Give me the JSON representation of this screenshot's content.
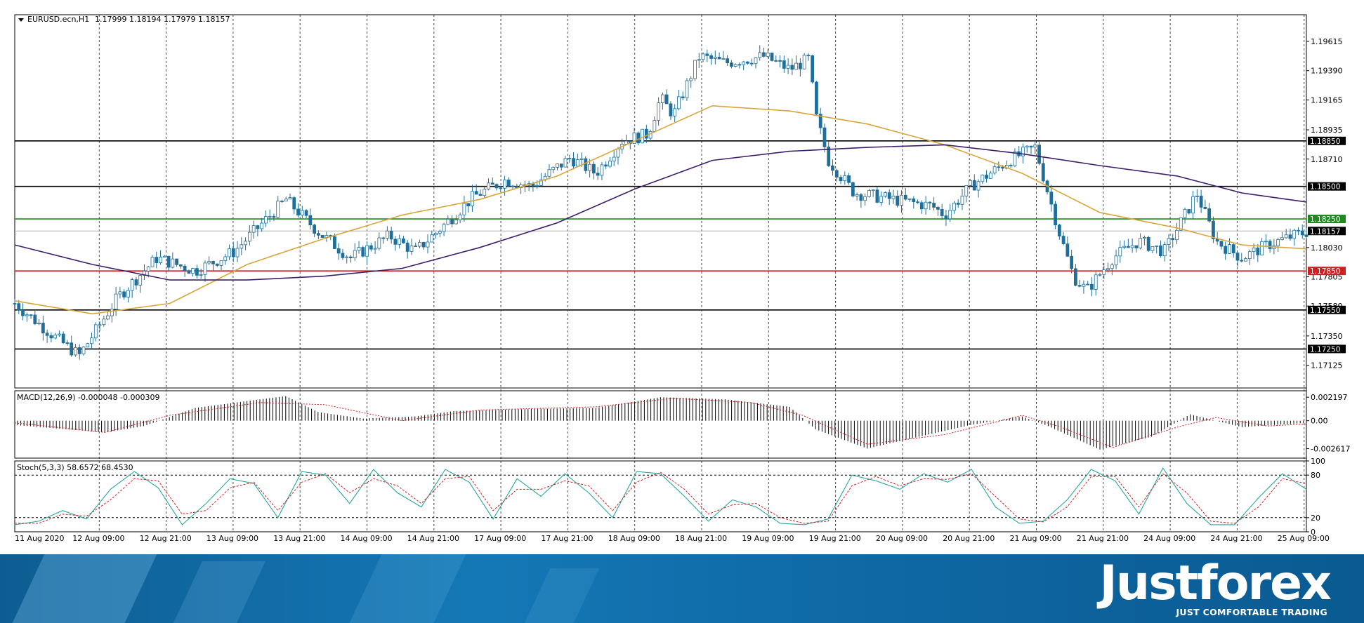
{
  "chart_data": [
    {
      "type": "candlestick",
      "title": "EURUSD.ecn,H1",
      "ohlc_header": "1.17999 1.18194 1.17979 1.18157",
      "ylim": [
        1.1695,
        1.1982
      ],
      "y_ticks": [
        "1.19615",
        "1.19390",
        "1.19165",
        "1.18935",
        "1.18710",
        "1.18030",
        "1.17805",
        "1.17580",
        "1.17350",
        "1.17125"
      ],
      "x_ticks": [
        "11 Aug 2020",
        "12 Aug 09:00",
        "12 Aug 21:00",
        "13 Aug 09:00",
        "13 Aug 21:00",
        "14 Aug 09:00",
        "14 Aug 21:00",
        "17 Aug 09:00",
        "17 Aug 21:00",
        "18 Aug 09:00",
        "18 Aug 21:00",
        "19 Aug 09:00",
        "19 Aug 21:00",
        "20 Aug 09:00",
        "20 Aug 21:00",
        "21 Aug 09:00",
        "21 Aug 21:00",
        "24 Aug 09:00",
        "24 Aug 21:00",
        "25 Aug 09:00"
      ],
      "current_price": "1.18157",
      "levels": [
        {
          "price": 1.1885,
          "label": "1.18850",
          "color": "#000000"
        },
        {
          "price": 1.185,
          "label": "1.18500",
          "color": "#000000"
        },
        {
          "price": 1.1825,
          "label": "1.18250",
          "color": "#1f8a1f"
        },
        {
          "price": 1.1785,
          "label": "1.17850",
          "color": "#d02020"
        },
        {
          "price": 1.1755,
          "label": "1.17550",
          "color": "#000000"
        },
        {
          "price": 1.1725,
          "label": "1.17250",
          "color": "#000000"
        }
      ],
      "series": [
        {
          "name": "ma_fast",
          "color": "#d9a53a",
          "points": [
            [
              0,
              1.1762
            ],
            [
              0.06,
              1.1752
            ],
            [
              0.12,
              1.176
            ],
            [
              0.18,
              1.179
            ],
            [
              0.24,
              1.181
            ],
            [
              0.3,
              1.1828
            ],
            [
              0.36,
              1.184
            ],
            [
              0.42,
              1.1858
            ],
            [
              0.48,
              1.1885
            ],
            [
              0.54,
              1.1912
            ],
            [
              0.6,
              1.1908
            ],
            [
              0.66,
              1.1898
            ],
            [
              0.72,
              1.1882
            ],
            [
              0.78,
              1.186
            ],
            [
              0.84,
              1.183
            ],
            [
              0.9,
              1.1818
            ],
            [
              0.95,
              1.1805
            ],
            [
              1.0,
              1.1802
            ]
          ]
        },
        {
          "name": "ma_slow",
          "color": "#3b1f6b",
          "points": [
            [
              0,
              1.1805
            ],
            [
              0.06,
              1.179
            ],
            [
              0.12,
              1.1778
            ],
            [
              0.18,
              1.1778
            ],
            [
              0.24,
              1.1781
            ],
            [
              0.3,
              1.1787
            ],
            [
              0.36,
              1.1803
            ],
            [
              0.42,
              1.1822
            ],
            [
              0.48,
              1.1848
            ],
            [
              0.54,
              1.187
            ],
            [
              0.6,
              1.1877
            ],
            [
              0.66,
              1.188
            ],
            [
              0.72,
              1.1882
            ],
            [
              0.78,
              1.1875
            ],
            [
              0.84,
              1.1866
            ],
            [
              0.9,
              1.1858
            ],
            [
              0.95,
              1.1845
            ],
            [
              1.0,
              1.1838
            ]
          ]
        }
      ],
      "price_path": [
        [
          0,
          1.176
        ],
        [
          0.03,
          1.1735
        ],
        [
          0.05,
          1.172
        ],
        [
          0.08,
          1.1765
        ],
        [
          0.11,
          1.1795
        ],
        [
          0.14,
          1.1785
        ],
        [
          0.17,
          1.18
        ],
        [
          0.19,
          1.182
        ],
        [
          0.21,
          1.184
        ],
        [
          0.235,
          1.1815
        ],
        [
          0.26,
          1.1795
        ],
        [
          0.29,
          1.1812
        ],
        [
          0.31,
          1.18
        ],
        [
          0.33,
          1.1818
        ],
        [
          0.355,
          1.1842
        ],
        [
          0.38,
          1.1855
        ],
        [
          0.4,
          1.185
        ],
        [
          0.43,
          1.1872
        ],
        [
          0.45,
          1.186
        ],
        [
          0.47,
          1.1885
        ],
        [
          0.49,
          1.189
        ],
        [
          0.51,
          1.1905
        ],
        [
          0.5,
          1.1918
        ],
        [
          0.53,
          1.195
        ],
        [
          0.55,
          1.1945
        ],
        [
          0.58,
          1.195
        ],
        [
          0.6,
          1.194
        ],
        [
          0.615,
          1.1948
        ],
        [
          0.62,
          1.1905
        ],
        [
          0.63,
          1.187
        ],
        [
          0.65,
          1.1845
        ],
        [
          0.68,
          1.184
        ],
        [
          0.71,
          1.1835
        ],
        [
          0.72,
          1.1828
        ],
        [
          0.74,
          1.185
        ],
        [
          0.77,
          1.187
        ],
        [
          0.79,
          1.188
        ],
        [
          0.8,
          1.1845
        ],
        [
          0.81,
          1.181
        ],
        [
          0.82,
          1.178
        ],
        [
          0.83,
          1.177
        ],
        [
          0.85,
          1.1795
        ],
        [
          0.87,
          1.1808
        ],
        [
          0.89,
          1.18
        ],
        [
          0.91,
          1.1835
        ],
        [
          0.915,
          1.1845
        ],
        [
          0.93,
          1.1808
        ],
        [
          0.95,
          1.1795
        ],
        [
          0.97,
          1.1805
        ],
        [
          0.99,
          1.1812
        ],
        [
          1.0,
          1.1815
        ]
      ]
    },
    {
      "type": "histogram",
      "title": "MACD(12,26,9) -0.000048 -0.000309",
      "ylim": [
        -0.0035,
        0.0028
      ],
      "y_ticks": [
        "0.002197",
        "0.00",
        "-0.002617"
      ],
      "histogram_color": "#000000",
      "signal_color": "#d02020",
      "histogram": [
        [
          0,
          -0.0004
        ],
        [
          0.07,
          -0.0011
        ],
        [
          0.1,
          -0.0005
        ],
        [
          0.14,
          0.0012
        ],
        [
          0.19,
          0.002
        ],
        [
          0.21,
          0.0023
        ],
        [
          0.235,
          0.0008
        ],
        [
          0.27,
          0.0002
        ],
        [
          0.31,
          0.0004
        ],
        [
          0.34,
          0.0009
        ],
        [
          0.4,
          0.0011
        ],
        [
          0.45,
          0.0012
        ],
        [
          0.5,
          0.0022
        ],
        [
          0.55,
          0.002
        ],
        [
          0.6,
          0.0013
        ],
        [
          0.62,
          -0.0008
        ],
        [
          0.66,
          -0.0026
        ],
        [
          0.7,
          -0.0015
        ],
        [
          0.74,
          -0.0004
        ],
        [
          0.78,
          0.0004
        ],
        [
          0.8,
          -0.0005
        ],
        [
          0.84,
          -0.0027
        ],
        [
          0.88,
          -0.0015
        ],
        [
          0.91,
          0.0006
        ],
        [
          0.95,
          -0.0006
        ],
        [
          1.0,
          -0.0002
        ]
      ],
      "signal": [
        [
          0,
          -0.0002
        ],
        [
          0.07,
          -0.0011
        ],
        [
          0.12,
          0.0005
        ],
        [
          0.19,
          0.0017
        ],
        [
          0.24,
          0.0015
        ],
        [
          0.3,
          0.0
        ],
        [
          0.36,
          0.001
        ],
        [
          0.45,
          0.0013
        ],
        [
          0.51,
          0.0021
        ],
        [
          0.57,
          0.0017
        ],
        [
          0.61,
          0.0005
        ],
        [
          0.66,
          -0.0022
        ],
        [
          0.72,
          -0.0013
        ],
        [
          0.78,
          0.0005
        ],
        [
          0.81,
          -0.0006
        ],
        [
          0.85,
          -0.0025
        ],
        [
          0.9,
          -0.0006
        ],
        [
          0.93,
          0.0003
        ],
        [
          0.97,
          -0.0005
        ],
        [
          1.0,
          -0.0003
        ]
      ]
    },
    {
      "type": "line",
      "title": "Stoch(5,3,3) 58.6572 68.4530",
      "ylim": [
        0,
        100
      ],
      "y_ticks": [
        "100",
        "80",
        "20",
        "0"
      ],
      "levels": [
        80,
        20
      ],
      "series": [
        {
          "name": "main",
          "color": "#2aa7a0",
          "values": [
            10,
            15,
            30,
            18,
            60,
            85,
            62,
            10,
            40,
            75,
            68,
            20,
            85,
            80,
            40,
            88,
            55,
            35,
            88,
            70,
            18,
            75,
            50,
            82,
            55,
            20,
            85,
            82,
            50,
            15,
            45,
            35,
            12,
            10,
            18,
            80,
            72,
            60,
            82,
            70,
            88,
            35,
            12,
            15,
            45,
            88,
            72,
            25,
            90,
            40,
            10,
            10,
            48,
            82,
            60
          ]
        },
        {
          "name": "signal",
          "color": "#d02020",
          "values": [
            12,
            12,
            25,
            22,
            45,
            75,
            72,
            25,
            30,
            62,
            70,
            30,
            70,
            82,
            55,
            75,
            65,
            40,
            75,
            78,
            30,
            60,
            60,
            72,
            65,
            30,
            70,
            84,
            60,
            25,
            38,
            40,
            20,
            12,
            15,
            65,
            78,
            65,
            75,
            74,
            82,
            50,
            18,
            14,
            35,
            78,
            78,
            35,
            82,
            55,
            15,
            12,
            35,
            75,
            68
          ]
        }
      ]
    }
  ],
  "brand": {
    "logo_text": "Justforex",
    "tagline": "JUST COMFORTABLE TRADING",
    "banner_color": "#0f6aa6"
  }
}
